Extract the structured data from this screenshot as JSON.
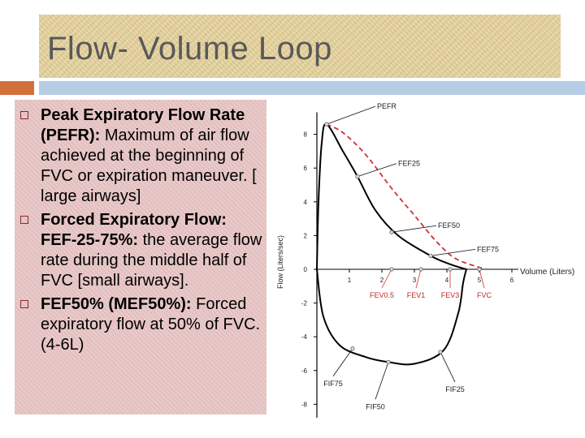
{
  "title": "Flow- Volume Loop",
  "bullets": [
    {
      "bold": "Peak Expiratory Flow Rate (PEFR):",
      "text": " Maximum of air flow achieved at the beginning of FVC or expiration maneuver. [ large airways]"
    },
    {
      "bold": "Forced Expiratory Flow: FEF-25-75%:",
      "text": " the average flow rate during the middle half of FVC [small airways]."
    },
    {
      "bold": "FEF50% (MEF50%):",
      "text": " Forced expiratory flow at 50% of FVC. (4-6L)"
    }
  ],
  "chart_data": {
    "type": "line",
    "xlabel": "Volume (Liters)",
    "ylabel": "Flow (Liters/sec)",
    "x_ticks": [
      "1",
      "2",
      "3",
      "4",
      "5",
      "6"
    ],
    "y_ticks": [
      "8",
      "6",
      "4",
      "2",
      "0",
      "-2",
      "-4",
      "-6",
      "-8"
    ],
    "xlim": [
      0,
      6
    ],
    "ylim": [
      -8,
      8
    ],
    "series": [
      {
        "style": "solid",
        "points": [
          [
            0,
            0
          ],
          [
            0.05,
            4
          ],
          [
            0.15,
            7.5
          ],
          [
            0.3,
            8.6
          ],
          [
            0.8,
            7
          ],
          [
            1.25,
            5.5
          ],
          [
            1.8,
            3.5
          ],
          [
            2.5,
            2
          ],
          [
            3.5,
            0.8
          ],
          [
            4.1,
            0.3
          ],
          [
            4.6,
            0
          ]
        ]
      },
      {
        "style": "dashed",
        "points": [
          [
            0.3,
            8.6
          ],
          [
            0.8,
            8.1
          ],
          [
            1.5,
            6.8
          ],
          [
            2.3,
            4.8
          ],
          [
            3.0,
            3.2
          ],
          [
            3.7,
            1.6
          ],
          [
            4.3,
            0.6
          ],
          [
            5.2,
            0
          ]
        ]
      },
      {
        "style": "solid",
        "points": [
          [
            0,
            0
          ],
          [
            0.2,
            -2.8
          ],
          [
            0.7,
            -4.5
          ],
          [
            1.5,
            -5.2
          ],
          [
            2.2,
            -5.5
          ],
          [
            3.0,
            -5.6
          ],
          [
            3.9,
            -4.8
          ],
          [
            4.35,
            -2.6
          ],
          [
            4.5,
            -0.8
          ],
          [
            4.6,
            0
          ]
        ]
      }
    ],
    "annotations": [
      {
        "label": "PEFR",
        "x": 0.3,
        "y": 8.6
      },
      {
        "label": "FEF25",
        "x": 1.25,
        "y": 5.5
      },
      {
        "label": "FEF50",
        "x": 2.3,
        "y": 2.2
      },
      {
        "label": "FEF75",
        "x": 3.5,
        "y": 0.8
      },
      {
        "label": "FEV0.5",
        "x": 2.3,
        "y": 0
      },
      {
        "label": "FEV1",
        "x": 3.2,
        "y": 0
      },
      {
        "label": "FEV3",
        "x": 4.1,
        "y": 0
      },
      {
        "label": "FVC",
        "x": 5.0,
        "y": 0
      },
      {
        "label": "FIF75",
        "x": 1.1,
        "y": -4.7
      },
      {
        "label": "FIF50",
        "x": 2.2,
        "y": -5.5
      },
      {
        "label": "FIF25",
        "x": 3.8,
        "y": -4.9
      }
    ]
  }
}
